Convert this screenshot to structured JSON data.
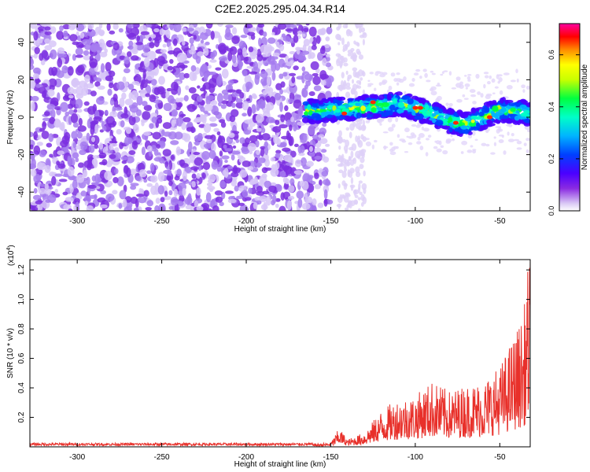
{
  "title": "C2E2.2025.295.04.34.R14",
  "chart_data": [
    {
      "type": "heatmap",
      "xlabel": "Height of straight line (km)",
      "ylabel": "Frequency (Hz)",
      "xlim": [
        -328,
        -32
      ],
      "ylim": [
        -50,
        50
      ],
      "xticks": [
        -300,
        -250,
        -200,
        -150,
        -100,
        -50
      ],
      "yticks": [
        -40,
        -20,
        0,
        20,
        40
      ],
      "colorbar": {
        "label": "Normalized spectral amplitude",
        "range": [
          0,
          0.72
        ],
        "ticks": [
          0.0,
          0.2,
          0.4,
          0.6
        ],
        "colormap": [
          "#ffffff",
          "#d9c8f5",
          "#8a2be2",
          "#4b00ff",
          "#0040ff",
          "#00b4ff",
          "#00ffc8",
          "#00ff40",
          "#c8ff00",
          "#ffff00",
          "#ff8c00",
          "#ff0000",
          "#ff00a0"
        ]
      },
      "features": {
        "noise_region_km": [
          -328,
          -150
        ],
        "gap_region_km": [
          -150,
          -130
        ],
        "signal_band": [
          {
            "x": -165,
            "y": 3
          },
          {
            "x": -150,
            "y": 4
          },
          {
            "x": -130,
            "y": 5
          },
          {
            "x": -110,
            "y": 7
          },
          {
            "x": -100,
            "y": 5
          },
          {
            "x": -90,
            "y": 2
          },
          {
            "x": -80,
            "y": -2
          },
          {
            "x": -70,
            "y": -4
          },
          {
            "x": -60,
            "y": 0
          },
          {
            "x": -50,
            "y": 4
          },
          {
            "x": -40,
            "y": 3
          },
          {
            "x": -32,
            "y": 2
          }
        ]
      }
    },
    {
      "type": "line",
      "xlabel": "Height of straight line (km)",
      "ylabel": "SNR (10 * v/v)",
      "scale_label": "(x10",
      "scale_exp": "4",
      "scale_close": ")",
      "xlim": [
        -328,
        -32
      ],
      "ylim": [
        0,
        1.27
      ],
      "xticks": [
        -300,
        -250,
        -200,
        -150,
        -100,
        -50
      ],
      "yticks": [
        0.2,
        0.4,
        0.6,
        0.8,
        1.0,
        1.2
      ],
      "series": [
        {
          "color": "#e8302a",
          "envelope": [
            {
              "x": -328,
              "y": 0.02
            },
            {
              "x": -160,
              "y": 0.02
            },
            {
              "x": -150,
              "y": 0.03
            },
            {
              "x": -145,
              "y": 0.13
            },
            {
              "x": -140,
              "y": 0.05
            },
            {
              "x": -130,
              "y": 0.1
            },
            {
              "x": -120,
              "y": 0.25
            },
            {
              "x": -110,
              "y": 0.33
            },
            {
              "x": -100,
              "y": 0.35
            },
            {
              "x": -90,
              "y": 0.45
            },
            {
              "x": -80,
              "y": 0.38
            },
            {
              "x": -70,
              "y": 0.42
            },
            {
              "x": -60,
              "y": 0.45
            },
            {
              "x": -50,
              "y": 0.55
            },
            {
              "x": -42,
              "y": 0.75
            },
            {
              "x": -36,
              "y": 0.9
            },
            {
              "x": -33,
              "y": 1.27
            }
          ]
        }
      ]
    }
  ]
}
